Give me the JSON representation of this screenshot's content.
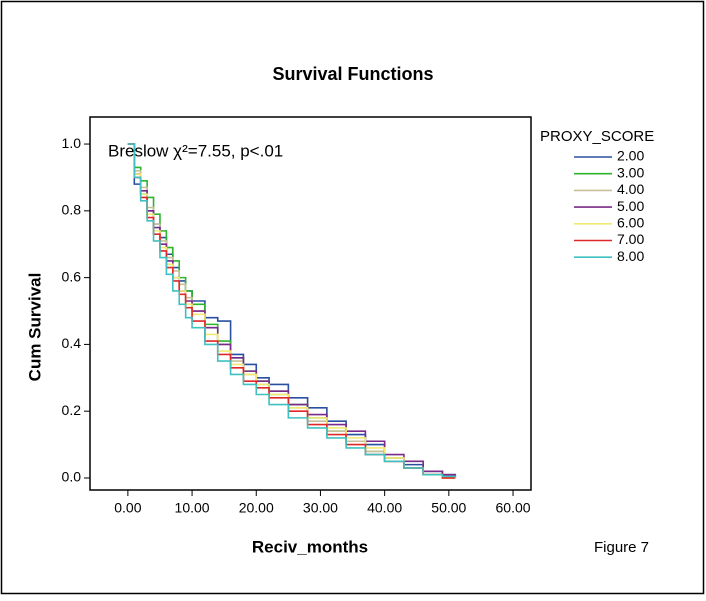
{
  "chart_data": {
    "type": "step",
    "title": "Survival Functions",
    "annotation": "Breslow χ²=7.55, p<.01",
    "figure_label": "Figure 7",
    "x_label": "Reciv_months",
    "y_label": "Cum Survival",
    "legend_title": "PROXY_SCORE",
    "legend_position": "right",
    "xlim": [
      -5.9,
      62.8
    ],
    "ylim": [
      -0.036,
      1.081
    ],
    "xticks": [
      {
        "value": 0,
        "label": "0.00"
      },
      {
        "value": 10,
        "label": "10.00"
      },
      {
        "value": 20,
        "label": "20.00"
      },
      {
        "value": 30,
        "label": "30.00"
      },
      {
        "value": 40,
        "label": "40.00"
      },
      {
        "value": 50,
        "label": "50.00"
      },
      {
        "value": 60,
        "label": "60.00"
      }
    ],
    "yticks": [
      {
        "value": 0,
        "label": "0.0"
      },
      {
        "value": 0.2,
        "label": "0.2"
      },
      {
        "value": 0.4,
        "label": "0.4"
      },
      {
        "value": 0.6,
        "label": "0.6"
      },
      {
        "value": 0.8,
        "label": "0.8"
      },
      {
        "value": 1,
        "label": "1.0"
      }
    ],
    "x": [
      0,
      1,
      2,
      3,
      4,
      5,
      6,
      7,
      8,
      9,
      10,
      12,
      14,
      16,
      18,
      20,
      22,
      25,
      28,
      31,
      34,
      37,
      40,
      43,
      46,
      49,
      51
    ],
    "series": [
      {
        "name": "2.00",
        "color": "#2a4fa0",
        "values": [
          1,
          0.88,
          0.85,
          0.8,
          0.76,
          0.72,
          0.67,
          0.63,
          0.59,
          0.56,
          0.53,
          0.48,
          0.47,
          0.37,
          0.34,
          0.3,
          0.28,
          0.24,
          0.21,
          0.17,
          0.13,
          0.1,
          0.06,
          0.04,
          0.02,
          0.01,
          0
        ]
      },
      {
        "name": "3.00",
        "color": "#2db52d",
        "values": [
          1,
          0.93,
          0.89,
          0.84,
          0.79,
          0.74,
          0.69,
          0.65,
          0.6,
          0.56,
          0.52,
          0.46,
          0.41,
          0.36,
          0.32,
          0.29,
          0.26,
          0.22,
          0.18,
          0.14,
          0.11,
          0.08,
          0.05,
          0.03,
          0.01,
          0,
          0
        ]
      },
      {
        "name": "4.00",
        "color": "#c8c09a",
        "values": [
          1,
          0.92,
          0.87,
          0.81,
          0.76,
          0.71,
          0.66,
          0.62,
          0.58,
          0.54,
          0.5,
          0.45,
          0.4,
          0.35,
          0.31,
          0.28,
          0.25,
          0.21,
          0.17,
          0.14,
          0.11,
          0.08,
          0.06,
          0.03,
          0.01,
          0,
          0
        ]
      },
      {
        "name": "5.00",
        "color": "#7a2a8a",
        "values": [
          1,
          0.91,
          0.86,
          0.8,
          0.75,
          0.7,
          0.65,
          0.6,
          0.56,
          0.53,
          0.5,
          0.45,
          0.4,
          0.36,
          0.32,
          0.29,
          0.26,
          0.22,
          0.19,
          0.16,
          0.14,
          0.11,
          0.07,
          0.05,
          0.02,
          0.01,
          0
        ]
      },
      {
        "name": "6.00",
        "color": "#f0ea70",
        "values": [
          1,
          0.91,
          0.85,
          0.79,
          0.74,
          0.69,
          0.64,
          0.6,
          0.56,
          0.52,
          0.49,
          0.43,
          0.38,
          0.34,
          0.31,
          0.28,
          0.25,
          0.21,
          0.18,
          0.15,
          0.12,
          0.09,
          0.06,
          0.03,
          0.01,
          0,
          0
        ]
      },
      {
        "name": "7.00",
        "color": "#e02828",
        "values": [
          1,
          0.9,
          0.84,
          0.78,
          0.73,
          0.68,
          0.63,
          0.59,
          0.55,
          0.51,
          0.47,
          0.41,
          0.37,
          0.33,
          0.29,
          0.27,
          0.24,
          0.2,
          0.16,
          0.13,
          0.1,
          0.07,
          0.05,
          0.03,
          0.01,
          0,
          0
        ]
      },
      {
        "name": "8.00",
        "color": "#40c0c0",
        "values": [
          1,
          0.9,
          0.83,
          0.77,
          0.71,
          0.66,
          0.61,
          0.56,
          0.52,
          0.48,
          0.45,
          0.4,
          0.35,
          0.31,
          0.28,
          0.25,
          0.22,
          0.18,
          0.15,
          0.12,
          0.09,
          0.07,
          0.05,
          0.03,
          0.01,
          0.005,
          0
        ]
      }
    ]
  }
}
